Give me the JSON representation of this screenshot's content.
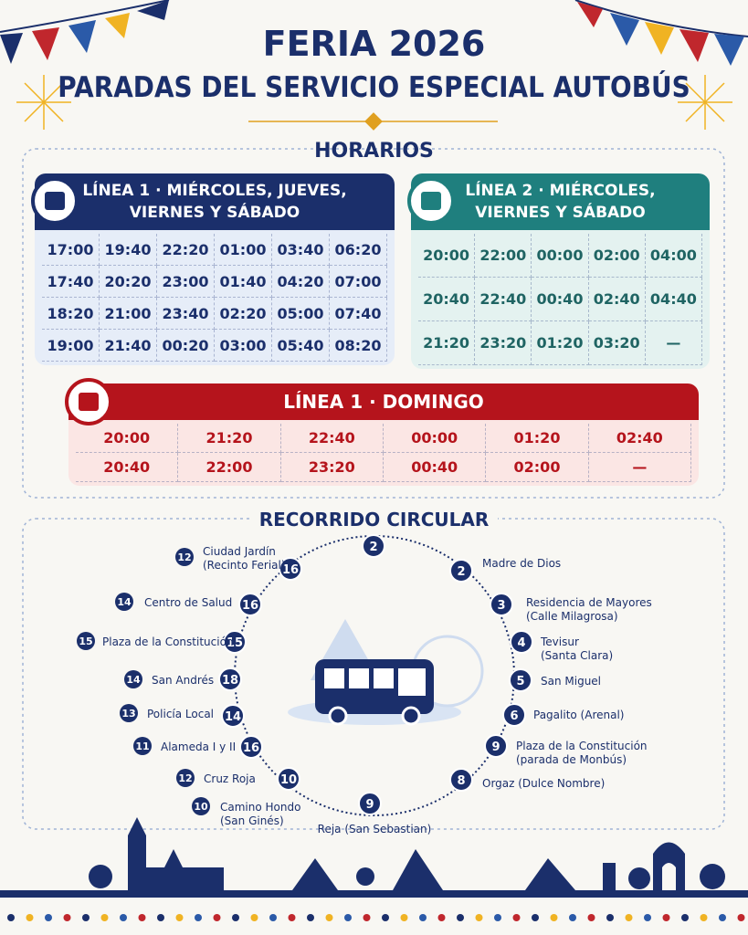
{
  "header": {
    "title": "FERIA 2026",
    "subtitle": "PARADAS DEL SERVICIO ESPECIAL AUTOBÚS"
  },
  "schedules": {
    "heading": "HORARIOS",
    "tables": [
      {
        "title": [
          "LÍNEA 1 · MIÉRCOLES, JUEVES,",
          "VIERNES Y SÁBADO"
        ],
        "rows": [
          [
            "17:00",
            "19:40",
            "22:20",
            "01:00",
            "03:40",
            "06:20"
          ],
          [
            "17:40",
            "20:20",
            "23:00",
            "01:40",
            "04:20",
            "07:00"
          ],
          [
            "18:20",
            "21:00",
            "23:40",
            "02:20",
            "05:00",
            "07:40"
          ],
          [
            "19:00",
            "21:40",
            "00:20",
            "03:00",
            "05:40",
            "08:20"
          ]
        ]
      },
      {
        "title": [
          "LÍNEA 2 · MIÉRCOLES,",
          "VIERNES Y SÁBADO"
        ],
        "rows": [
          [
            "20:00",
            "22:00",
            "00:00",
            "02:00",
            "04:00"
          ],
          [
            "20:40",
            "22:40",
            "00:40",
            "02:40",
            "04:40"
          ],
          [
            "21:20",
            "23:20",
            "01:20",
            "03:20",
            "—"
          ]
        ]
      },
      {
        "title": [
          "LÍNEA 1 · DOMINGO"
        ],
        "rows": [
          [
            "20:00",
            "21:20",
            "22:40",
            "00:00",
            "01:20",
            "02:40"
          ],
          [
            "20:40",
            "22:00",
            "23:20",
            "00:40",
            "02:00",
            "—"
          ]
        ]
      }
    ]
  },
  "route": {
    "heading": "RECORRIDO CIRCULAR",
    "nodes": [
      "2",
      "2",
      "3",
      "4",
      "5",
      "6",
      "9",
      "8",
      "9",
      "10",
      "16",
      "14",
      "18",
      "15",
      "16",
      "16"
    ],
    "stops": [
      {
        "lines": [
          "Madre de Dios"
        ]
      },
      {
        "lines": [
          "Residencia de Mayores",
          "(Calle Milagrosa)"
        ]
      },
      {
        "lines": [
          "Tevisur",
          "(Santa Clara)"
        ]
      },
      {
        "lines": [
          "San Miguel"
        ]
      },
      {
        "lines": [
          "Pagalito (Arenal)"
        ]
      },
      {
        "lines": [
          "Plaza de la Constitución",
          "(parada de Monbús)"
        ]
      },
      {
        "lines": [
          "Orgaz (Dulce Nombre)"
        ]
      },
      {
        "lines": [
          "Reja (San Sebastian)"
        ]
      },
      {
        "badge": "12",
        "lines": [
          "Ciudad Jardín",
          "(Recinto Ferial)"
        ]
      },
      {
        "badge": "14",
        "lines": [
          "Centro de Salud"
        ]
      },
      {
        "badge": "15",
        "lines": [
          "Plaza de la Constitución"
        ]
      },
      {
        "badge": "14",
        "lines": [
          "San Andrés"
        ]
      },
      {
        "badge": "13",
        "lines": [
          "Policía Local"
        ]
      },
      {
        "badge": "11",
        "lines": [
          "Alameda I y II"
        ]
      },
      {
        "badge": "12",
        "lines": [
          "Cruz Roja"
        ]
      },
      {
        "badge": "10",
        "lines": [
          "Camino Hondo",
          "(San Ginés)"
        ]
      }
    ]
  }
}
